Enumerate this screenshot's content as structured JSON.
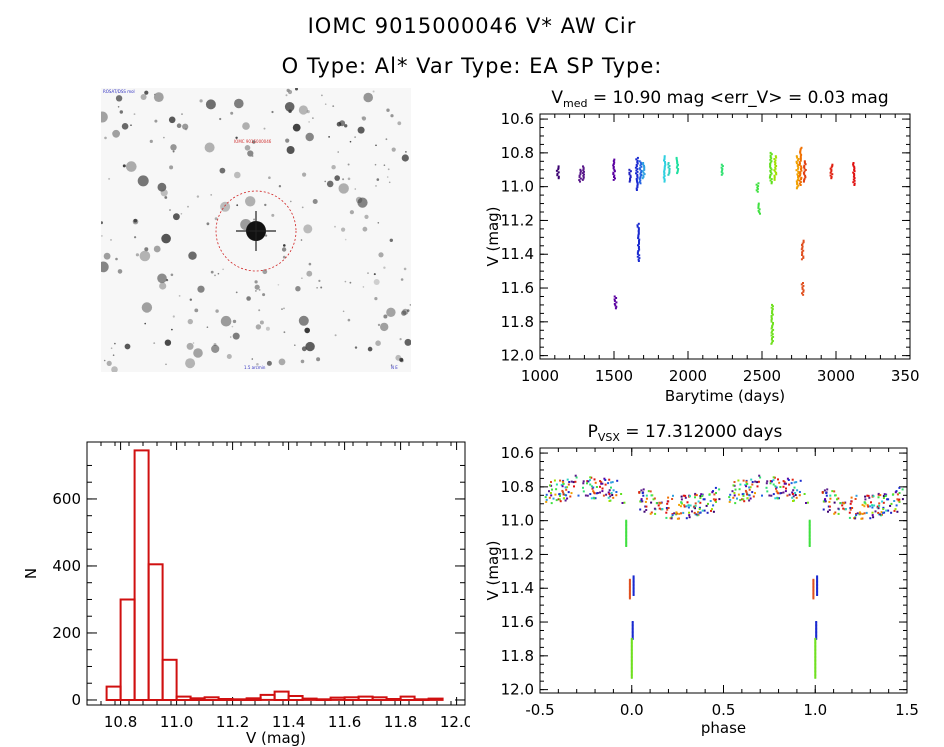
{
  "header": {
    "line1": "IOMC 9015000046    V* AW Cir",
    "line2": "O Type: Al*  Var Type: EA  SP Type:"
  },
  "image_panel": {
    "top_left_caption": "ROSAT/DSS mol",
    "center_caption": "IOMC 9015000046",
    "bottom_caption": "1.5 arcmin",
    "corner_caption": "N E"
  },
  "chart_data": [
    {
      "type": "scatter",
      "name": "lightcurve",
      "title_main": "V",
      "title_sub": "med",
      "title_rest": " = 10.90 mag <err_V> = 0.03 mag",
      "xlabel": "Barytime (days)",
      "ylabel": "V (mag)",
      "xlim": [
        1000,
        3500
      ],
      "ylim": [
        12.02,
        10.57
      ],
      "xticks": [
        "1000",
        "1500",
        "2000",
        "2500",
        "3000",
        "3500"
      ],
      "yticks": [
        "10.6",
        "10.8",
        "11.0",
        "11.2",
        "11.4",
        "11.6",
        "11.8",
        "12.0"
      ],
      "groups": [
        {
          "x": 1120,
          "ymin": 10.88,
          "ymax": 10.95,
          "color": "#3a0070"
        },
        {
          "x": 1270,
          "ymin": 10.9,
          "ymax": 10.97,
          "color": "#5a1a8a"
        },
        {
          "x": 1295,
          "ymin": 10.88,
          "ymax": 10.96,
          "color": "#5a1a8a"
        },
        {
          "x": 1500,
          "ymin": 10.84,
          "ymax": 10.96,
          "color": "#5a00a0"
        },
        {
          "x": 1510,
          "ymin": 11.65,
          "ymax": 11.72,
          "color": "#5a00a0"
        },
        {
          "x": 1610,
          "ymin": 10.9,
          "ymax": 10.97,
          "color": "#2020c0"
        },
        {
          "x": 1655,
          "ymin": 10.83,
          "ymax": 11.02,
          "color": "#1a2ad0"
        },
        {
          "x": 1665,
          "ymin": 11.22,
          "ymax": 11.44,
          "color": "#1a2ad0"
        },
        {
          "x": 1680,
          "ymin": 10.85,
          "ymax": 10.98,
          "color": "#2060e0"
        },
        {
          "x": 1700,
          "ymin": 10.86,
          "ymax": 10.95,
          "color": "#30a0e0"
        },
        {
          "x": 1840,
          "ymin": 10.82,
          "ymax": 10.97,
          "color": "#30d0e0"
        },
        {
          "x": 1870,
          "ymin": 10.86,
          "ymax": 10.93,
          "color": "#30d0c0"
        },
        {
          "x": 1930,
          "ymin": 10.83,
          "ymax": 10.92,
          "color": "#20e0a0"
        },
        {
          "x": 2230,
          "ymin": 10.87,
          "ymax": 10.93,
          "color": "#30e070"
        },
        {
          "x": 2470,
          "ymin": 10.98,
          "ymax": 11.03,
          "color": "#40e040"
        },
        {
          "x": 2480,
          "ymin": 11.1,
          "ymax": 11.16,
          "color": "#40e040"
        },
        {
          "x": 2560,
          "ymin": 10.8,
          "ymax": 10.98,
          "color": "#60e020"
        },
        {
          "x": 2570,
          "ymin": 11.7,
          "ymax": 11.93,
          "color": "#70e020"
        },
        {
          "x": 2590,
          "ymin": 10.82,
          "ymax": 10.96,
          "color": "#a0e000"
        },
        {
          "x": 2740,
          "ymin": 10.82,
          "ymax": 11.01,
          "color": "#f0a000"
        },
        {
          "x": 2760,
          "ymin": 10.77,
          "ymax": 10.99,
          "color": "#f07000"
        },
        {
          "x": 2775,
          "ymin": 11.32,
          "ymax": 11.43,
          "color": "#e05020"
        },
        {
          "x": 2775,
          "ymin": 11.57,
          "ymax": 11.64,
          "color": "#e05020"
        },
        {
          "x": 2790,
          "ymin": 10.85,
          "ymax": 10.97,
          "color": "#e04010"
        },
        {
          "x": 2970,
          "ymin": 10.87,
          "ymax": 10.95,
          "color": "#e02010"
        },
        {
          "x": 3120,
          "ymin": 10.86,
          "ymax": 10.99,
          "color": "#e01010"
        }
      ]
    },
    {
      "type": "bar",
      "name": "histogram",
      "xlabel": "V (mag)",
      "ylabel": "N",
      "xlim": [
        10.68,
        12.03
      ],
      "ylim": [
        -15,
        770
      ],
      "xticks": [
        "10.8",
        "11.0",
        "11.2",
        "11.4",
        "11.6",
        "11.8",
        "12.0"
      ],
      "yticks": [
        "0",
        "200",
        "400",
        "600"
      ],
      "bin_width": 0.05,
      "bins": [
        {
          "x": 10.75,
          "n": 40
        },
        {
          "x": 10.8,
          "n": 300
        },
        {
          "x": 10.85,
          "n": 745
        },
        {
          "x": 10.9,
          "n": 405
        },
        {
          "x": 10.95,
          "n": 120
        },
        {
          "x": 11.0,
          "n": 10
        },
        {
          "x": 11.05,
          "n": 5
        },
        {
          "x": 11.1,
          "n": 8
        },
        {
          "x": 11.15,
          "n": 3
        },
        {
          "x": 11.2,
          "n": 2
        },
        {
          "x": 11.25,
          "n": 5
        },
        {
          "x": 11.3,
          "n": 15
        },
        {
          "x": 11.35,
          "n": 25
        },
        {
          "x": 11.4,
          "n": 12
        },
        {
          "x": 11.45,
          "n": 4
        },
        {
          "x": 11.5,
          "n": 2
        },
        {
          "x": 11.55,
          "n": 7
        },
        {
          "x": 11.6,
          "n": 8
        },
        {
          "x": 11.65,
          "n": 10
        },
        {
          "x": 11.7,
          "n": 8
        },
        {
          "x": 11.75,
          "n": 3
        },
        {
          "x": 11.8,
          "n": 10
        },
        {
          "x": 11.85,
          "n": 2
        },
        {
          "x": 11.9,
          "n": 4
        }
      ]
    },
    {
      "type": "scatter",
      "name": "phased",
      "title_main": "P",
      "title_sub": "VSX",
      "title_rest": " = 17.312000 days",
      "xlabel": "phase",
      "ylabel": "V (mag)",
      "xlim": [
        -0.5,
        1.5
      ],
      "ylim": [
        12.02,
        10.57
      ],
      "xticks": [
        "-0.5",
        "0.0",
        "0.5",
        "1.0",
        "1.5"
      ],
      "yticks": [
        "10.6",
        "10.8",
        "11.0",
        "11.2",
        "11.4",
        "11.6",
        "11.8",
        "12.0"
      ],
      "period": 17.312,
      "eclipse_columns": [
        {
          "phase": -0.01,
          "ymin": 11.35,
          "ymax": 11.46,
          "color": "#e05020"
        },
        {
          "phase": 0.01,
          "ymin": 11.33,
          "ymax": 11.44,
          "color": "#1a2ad0"
        },
        {
          "phase": 0.005,
          "ymin": 11.6,
          "ymax": 11.7,
          "color": "#1a2ad0"
        },
        {
          "phase": 0.0,
          "ymin": 11.7,
          "ymax": 11.93,
          "color": "#70e020"
        },
        {
          "phase": -0.03,
          "ymin": 11.0,
          "ymax": 11.15,
          "color": "#40e040"
        }
      ]
    }
  ]
}
